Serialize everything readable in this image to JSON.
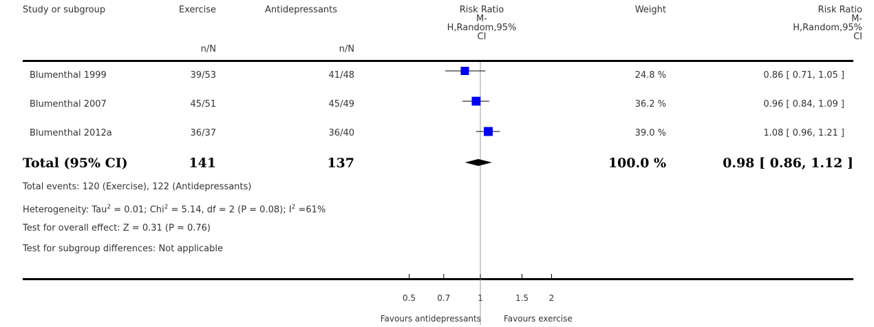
{
  "header": {
    "study": "Study or subgroup",
    "exercise": "Exercise",
    "exercise_sub": "n/N",
    "antidep": "Antidepressants",
    "antidep_sub": "n/N",
    "rr_plot": [
      "Risk Ratio",
      "M-",
      "H,Random,95%",
      "CI"
    ],
    "weight": "Weight",
    "rr_text": [
      "Risk Ratio",
      "M-",
      "H,Random,95%",
      "CI"
    ]
  },
  "rows": [
    {
      "study": "Blumenthal 1999",
      "exercise": "39/53",
      "antidep": "41/48",
      "weight": "24.8 %",
      "ci_text": "0.86 [ 0.71, 1.05 ]"
    },
    {
      "study": "Blumenthal 2007",
      "exercise": "45/51",
      "antidep": "45/49",
      "weight": "36.2 %",
      "ci_text": "0.96 [ 0.84, 1.09 ]"
    },
    {
      "study": "Blumenthal 2012a",
      "exercise": "36/37",
      "antidep": "36/40",
      "weight": "39.0 %",
      "ci_text": "1.08 [ 0.96, 1.21 ]"
    }
  ],
  "total": {
    "label": "Total (95% CI)",
    "exercise": "141",
    "antidep": "137",
    "weight": "100.0 %",
    "ci_text": "0.98 [ 0.86, 1.12 ]"
  },
  "notes": {
    "events": "Total events: 120 (Exercise), 122 (Antidepressants)",
    "het_pre": "Heterogeneity: Tau",
    "het_sup1": "2",
    "het_mid1": " = 0.01; Chi",
    "het_sup2": "2",
    "het_mid2": " = 5.14, df = 2 (P = 0.08); I",
    "het_sup3": "2",
    "het_end": " =61%",
    "overall": "Test for overall effect: Z = 0.31 (P = 0.76)",
    "subgroup": "Test for subgroup differences: Not applicable"
  },
  "axis_labels": {
    "left": "Favours antidepressants",
    "right": "Favours exercise"
  },
  "chart_data": {
    "type": "scatter",
    "xscale": "log",
    "xlim": [
      0.5,
      2
    ],
    "ticks": [
      0.5,
      0.7,
      1,
      1.5,
      2
    ],
    "tick_labels": [
      "0.5",
      "0.7",
      "1",
      "1.5",
      "2"
    ],
    "studies": [
      {
        "name": "Blumenthal 1999",
        "rr": 0.86,
        "lo": 0.71,
        "hi": 1.05,
        "weight": 24.8
      },
      {
        "name": "Blumenthal 2007",
        "rr": 0.96,
        "lo": 0.84,
        "hi": 1.09,
        "weight": 36.2
      },
      {
        "name": "Blumenthal 2012a",
        "rr": 1.08,
        "lo": 0.96,
        "hi": 1.21,
        "weight": 39.0
      }
    ],
    "pooled": {
      "rr": 0.98,
      "lo": 0.86,
      "hi": 1.12
    },
    "marker_color": "#0000ee",
    "diamond_color": "#000000"
  }
}
